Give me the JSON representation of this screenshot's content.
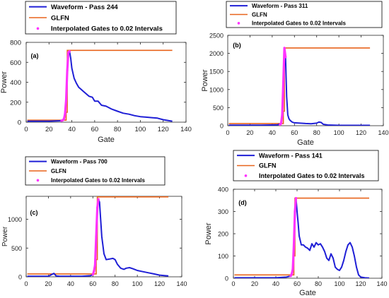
{
  "figure": {
    "colors": {
      "waveform": "#1f1fd6",
      "glfn": "#e8641c",
      "interpolated": "#ff33ff",
      "axis": "#262626",
      "frame": "#000000"
    }
  },
  "chart_data": [
    {
      "type": "line",
      "panel_label": "(a)",
      "xlabel": "Gate",
      "ylabel": "Power",
      "xlim": [
        0,
        140
      ],
      "ylim": [
        0,
        800
      ],
      "xticks": [
        0,
        20,
        40,
        60,
        80,
        100,
        120,
        140
      ],
      "yticks": [
        0,
        200,
        400,
        600,
        800
      ],
      "legend": [
        "Waveform - Pass 244",
        "GLFN",
        "Interpolated Gates to 0.02 Intervals"
      ],
      "series": [
        {
          "name": "Waveform - Pass 244",
          "kind": "waveform",
          "x": [
            1,
            10,
            20,
            30,
            33,
            34,
            35,
            36,
            37,
            38,
            39,
            40,
            42,
            44,
            46,
            48,
            50,
            52,
            55,
            58,
            60,
            63,
            66,
            70,
            75,
            80,
            85,
            90,
            95,
            100,
            105,
            110,
            115,
            120,
            125,
            128
          ],
          "y": [
            10,
            10,
            10,
            14,
            30,
            80,
            220,
            520,
            700,
            710,
            640,
            540,
            440,
            390,
            350,
            330,
            310,
            290,
            260,
            250,
            210,
            210,
            170,
            160,
            130,
            110,
            90,
            80,
            65,
            55,
            50,
            45,
            40,
            25,
            15,
            10
          ]
        },
        {
          "name": "GLFN",
          "kind": "glfn",
          "x": [
            1,
            35,
            35,
            36,
            36,
            128
          ],
          "y": [
            20,
            20,
            100,
            100,
            720,
            720
          ]
        },
        {
          "name": "Interpolated Gates to 0.02 Intervals",
          "kind": "interp",
          "x": [
            31,
            32,
            33,
            34,
            35,
            36,
            37,
            38
          ],
          "y": [
            14,
            20,
            30,
            80,
            220,
            520,
            700,
            710
          ]
        }
      ]
    },
    {
      "type": "line",
      "panel_label": "(b)",
      "xlabel": "Gate",
      "ylabel": "Power",
      "xlim": [
        0,
        140
      ],
      "ylim": [
        0,
        2500
      ],
      "xticks": [
        0,
        20,
        40,
        60,
        80,
        100,
        120,
        140
      ],
      "yticks": [
        0,
        500,
        1000,
        1500,
        2000,
        2500
      ],
      "legend": [
        "Waveform - Pass 311",
        "GLFN",
        "Interpolated Gates to 0.02 Intervals"
      ],
      "series": [
        {
          "name": "Waveform - Pass 311",
          "kind": "waveform",
          "x": [
            1,
            10,
            20,
            30,
            40,
            45,
            48,
            49,
            50,
            51,
            52,
            53,
            54,
            55,
            56,
            58,
            60,
            65,
            70,
            75,
            80,
            82,
            84,
            86,
            90,
            95,
            100,
            110,
            120,
            128
          ],
          "y": [
            15,
            15,
            15,
            15,
            20,
            25,
            60,
            300,
            1200,
            2150,
            1900,
            800,
            300,
            200,
            150,
            100,
            80,
            70,
            60,
            55,
            70,
            100,
            90,
            40,
            20,
            15,
            10,
            10,
            10,
            10
          ]
        },
        {
          "name": "GLFN",
          "kind": "glfn",
          "x": [
            1,
            50,
            50,
            51,
            51,
            128
          ],
          "y": [
            60,
            60,
            400,
            400,
            2150,
            2150
          ]
        },
        {
          "name": "Interpolated Gates to 0.02 Intervals",
          "kind": "interp",
          "x": [
            47,
            48,
            49,
            50,
            51,
            52
          ],
          "y": [
            30,
            60,
            300,
            1200,
            2150,
            1900
          ]
        }
      ]
    },
    {
      "type": "line",
      "panel_label": "(c)",
      "xlabel": "",
      "ylabel": "Power",
      "xlim": [
        0,
        140
      ],
      "ylim": [
        0,
        1400
      ],
      "xticks": [
        0,
        20,
        40,
        60,
        80,
        100,
        120,
        140
      ],
      "yticks": [
        0,
        500,
        1000
      ],
      "legend": [
        "Waveform - Pass 700",
        "GLFN",
        "Interpolated Gates to 0.02 Intervals"
      ],
      "series": [
        {
          "name": "Waveform - Pass 700",
          "kind": "waveform",
          "x": [
            1,
            10,
            20,
            23,
            25,
            27,
            30,
            40,
            50,
            58,
            60,
            62,
            63,
            64,
            65,
            66,
            67,
            68,
            70,
            72,
            75,
            78,
            80,
            82,
            85,
            88,
            90,
            93,
            96,
            100,
            105,
            110,
            115,
            120,
            125,
            128
          ],
          "y": [
            10,
            10,
            10,
            40,
            60,
            15,
            10,
            10,
            10,
            20,
            40,
            200,
            700,
            1200,
            1350,
            1300,
            1000,
            700,
            400,
            300,
            310,
            320,
            300,
            220,
            150,
            130,
            150,
            160,
            140,
            110,
            90,
            70,
            50,
            30,
            20,
            15
          ]
        },
        {
          "name": "GLFN",
          "kind": "glfn",
          "x": [
            1,
            63,
            63,
            64,
            64,
            128
          ],
          "y": [
            50,
            50,
            300,
            300,
            1390,
            1390
          ]
        },
        {
          "name": "Interpolated Gates to 0.02 Intervals",
          "kind": "interp",
          "x": [
            60,
            61,
            62,
            63,
            64,
            65
          ],
          "y": [
            40,
            100,
            200,
            700,
            1200,
            1350
          ]
        }
      ]
    },
    {
      "type": "line",
      "panel_label": "(d)",
      "xlabel": "Gate",
      "ylabel": "Power",
      "xlim": [
        0,
        140
      ],
      "ylim": [
        0,
        400
      ],
      "xticks": [
        0,
        20,
        40,
        60,
        80,
        100,
        120,
        140
      ],
      "yticks": [
        0,
        100,
        200,
        300,
        400
      ],
      "legend": [
        "Waveform - Pass 141",
        "GLFN",
        "Interpolated Gates to 0.02 Intervals"
      ],
      "series": [
        {
          "name": "Waveform - Pass 141",
          "kind": "waveform",
          "x": [
            1,
            10,
            20,
            30,
            40,
            50,
            54,
            56,
            57,
            58,
            59,
            60,
            61,
            62,
            64,
            66,
            68,
            70,
            72,
            74,
            76,
            78,
            80,
            82,
            84,
            86,
            88,
            90,
            92,
            94,
            96,
            98,
            100,
            102,
            104,
            106,
            108,
            110,
            112,
            114,
            116,
            118,
            120,
            124,
            128
          ],
          "y": [
            2,
            2,
            2,
            2,
            2,
            5,
            10,
            40,
            150,
            300,
            360,
            300,
            250,
            190,
            150,
            150,
            140,
            135,
            125,
            155,
            140,
            160,
            150,
            155,
            140,
            120,
            90,
            80,
            110,
            90,
            50,
            40,
            35,
            50,
            80,
            120,
            150,
            160,
            140,
            100,
            50,
            15,
            5,
            2,
            1
          ]
        },
        {
          "name": "GLFN",
          "kind": "glfn",
          "x": [
            1,
            57,
            57,
            58,
            58,
            128
          ],
          "y": [
            15,
            15,
            100,
            100,
            360,
            360
          ]
        },
        {
          "name": "Interpolated Gates to 0.02 Intervals",
          "kind": "interp",
          "x": [
            54,
            55,
            56,
            57,
            58,
            59
          ],
          "y": [
            10,
            20,
            40,
            150,
            300,
            360
          ]
        }
      ]
    }
  ]
}
